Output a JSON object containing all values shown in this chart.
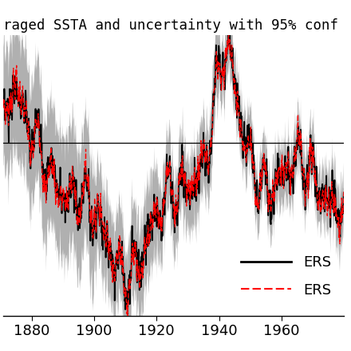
{
  "title": "raged SSTA and uncertainty with 95% conf",
  "xlim": [
    1871,
    1980
  ],
  "ylim": [
    -1.05,
    0.85
  ],
  "xticks": [
    1880,
    1900,
    1920,
    1940,
    1960
  ],
  "hline_y": 0.12,
  "shade_color": "#b0b0b0",
  "line1_color": "#000000",
  "line2_color": "#ff0000",
  "legend_labels": [
    "ERS",
    "ERS"
  ],
  "title_fontsize": 12.5,
  "tick_fontsize": 13,
  "background_color": "#ffffff",
  "figsize": [
    4.4,
    4.4
  ],
  "dpi": 100
}
